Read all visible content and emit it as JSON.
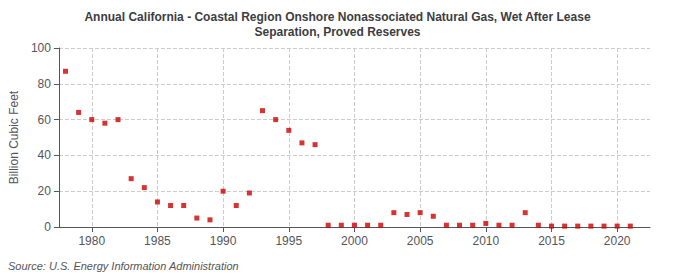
{
  "chart_data": {
    "type": "scatter",
    "title": "Annual California - Coastal Region Onshore Nonassociated Natural Gas, Wet After Lease\nSeparation, Proved Reserves",
    "ylabel": "Billion Cubic Feet",
    "annotation": "Source: U.S. Energy Information Administration",
    "x": [
      1978,
      1979,
      1980,
      1981,
      1982,
      1983,
      1984,
      1985,
      1986,
      1987,
      1988,
      1989,
      1990,
      1991,
      1992,
      1993,
      1994,
      1995,
      1996,
      1997,
      1998,
      1999,
      2000,
      2001,
      2002,
      2003,
      2004,
      2005,
      2006,
      2007,
      2008,
      2009,
      2010,
      2011,
      2012,
      2013,
      2014,
      2015,
      2016,
      2017,
      2018,
      2019,
      2020,
      2021
    ],
    "values": [
      87,
      64,
      60,
      58,
      60,
      27,
      22,
      14,
      12,
      12,
      5,
      4,
      20,
      12,
      19,
      65,
      60,
      54,
      47,
      46,
      1,
      1,
      1,
      1,
      1,
      8,
      7,
      8,
      6,
      1,
      1,
      1,
      2,
      1,
      1,
      8,
      1,
      0.5,
      0.5,
      0.5,
      0.5,
      0.5,
      0.5,
      0.5
    ],
    "color": "#cc0000",
    "marker": "square",
    "xlim": [
      1977.5,
      2022.5
    ],
    "xticks": [
      1980,
      1985,
      1990,
      1995,
      2000,
      2005,
      2010,
      2015,
      2020
    ],
    "ylim": [
      0,
      100
    ],
    "yticks": [
      0,
      20,
      40,
      60,
      80,
      100
    ],
    "grid": true
  }
}
